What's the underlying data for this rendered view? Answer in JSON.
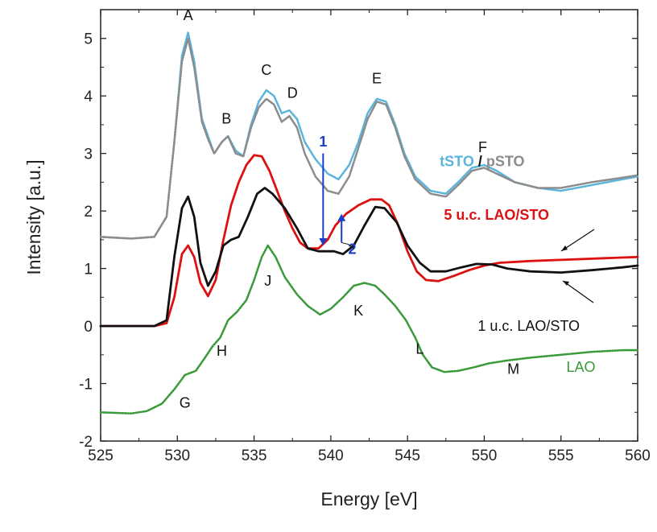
{
  "chart_data": {
    "type": "line",
    "xlabel": "Energy [eV]",
    "ylabel": "Intensity [a.u.]",
    "xlim": [
      525,
      560
    ],
    "ylim": [
      -2,
      5.5
    ],
    "xticks": [
      525,
      530,
      535,
      540,
      545,
      550,
      555,
      560
    ],
    "yticks": [
      -2,
      -1,
      0,
      1,
      2,
      3,
      4,
      5
    ],
    "grid": false,
    "series": [
      {
        "name": "tSTO",
        "color": "#5ab4dc",
        "style": "dotted",
        "points": [
          [
            525,
            1.55
          ],
          [
            527,
            1.52
          ],
          [
            528.5,
            1.55
          ],
          [
            529.3,
            1.9
          ],
          [
            529.8,
            3.2
          ],
          [
            530.3,
            4.7
          ],
          [
            530.7,
            5.1
          ],
          [
            531.1,
            4.6
          ],
          [
            531.6,
            3.6
          ],
          [
            532.0,
            3.3
          ],
          [
            532.4,
            3.0
          ],
          [
            532.9,
            3.2
          ],
          [
            533.3,
            3.3
          ],
          [
            533.8,
            3.05
          ],
          [
            534.3,
            2.95
          ],
          [
            534.8,
            3.5
          ],
          [
            535.3,
            3.9
          ],
          [
            535.8,
            4.1
          ],
          [
            536.3,
            4.0
          ],
          [
            536.8,
            3.7
          ],
          [
            537.3,
            3.75
          ],
          [
            537.8,
            3.6
          ],
          [
            538.3,
            3.2
          ],
          [
            539,
            2.9
          ],
          [
            539.8,
            2.65
          ],
          [
            540.5,
            2.55
          ],
          [
            541.2,
            2.8
          ],
          [
            541.8,
            3.2
          ],
          [
            542.4,
            3.7
          ],
          [
            543.0,
            3.95
          ],
          [
            543.6,
            3.9
          ],
          [
            544.2,
            3.5
          ],
          [
            544.8,
            3.0
          ],
          [
            545.5,
            2.6
          ],
          [
            546.5,
            2.35
          ],
          [
            547.5,
            2.3
          ],
          [
            548.3,
            2.5
          ],
          [
            549.2,
            2.75
          ],
          [
            550.0,
            2.8
          ],
          [
            550.8,
            2.7
          ],
          [
            552,
            2.5
          ],
          [
            553.5,
            2.4
          ],
          [
            555,
            2.35
          ],
          [
            557,
            2.45
          ],
          [
            559,
            2.55
          ],
          [
            560,
            2.6
          ]
        ]
      },
      {
        "name": "pSTO",
        "color": "#8c8c8c",
        "style": "dotted",
        "points": [
          [
            525,
            1.55
          ],
          [
            527,
            1.52
          ],
          [
            528.5,
            1.55
          ],
          [
            529.3,
            1.9
          ],
          [
            529.8,
            3.2
          ],
          [
            530.3,
            4.6
          ],
          [
            530.7,
            5.0
          ],
          [
            531.1,
            4.5
          ],
          [
            531.6,
            3.55
          ],
          [
            532.0,
            3.25
          ],
          [
            532.4,
            3.0
          ],
          [
            532.9,
            3.2
          ],
          [
            533.3,
            3.3
          ],
          [
            533.8,
            3.0
          ],
          [
            534.3,
            2.95
          ],
          [
            534.8,
            3.45
          ],
          [
            535.3,
            3.8
          ],
          [
            535.8,
            3.95
          ],
          [
            536.3,
            3.85
          ],
          [
            536.8,
            3.55
          ],
          [
            537.3,
            3.65
          ],
          [
            537.8,
            3.45
          ],
          [
            538.3,
            3.0
          ],
          [
            539,
            2.6
          ],
          [
            539.8,
            2.35
          ],
          [
            540.5,
            2.3
          ],
          [
            541.2,
            2.6
          ],
          [
            541.8,
            3.1
          ],
          [
            542.4,
            3.6
          ],
          [
            543.0,
            3.9
          ],
          [
            543.6,
            3.85
          ],
          [
            544.2,
            3.45
          ],
          [
            544.8,
            2.95
          ],
          [
            545.5,
            2.55
          ],
          [
            546.5,
            2.3
          ],
          [
            547.5,
            2.25
          ],
          [
            548.3,
            2.45
          ],
          [
            549.2,
            2.7
          ],
          [
            550.0,
            2.75
          ],
          [
            550.8,
            2.65
          ],
          [
            552,
            2.5
          ],
          [
            553.5,
            2.4
          ],
          [
            555,
            2.4
          ],
          [
            557,
            2.5
          ],
          [
            559,
            2.58
          ],
          [
            560,
            2.62
          ]
        ]
      },
      {
        "name": "5 u.c. LAO/STO",
        "color": "#dd1111",
        "style": "solid",
        "points": [
          [
            525,
            0
          ],
          [
            528.5,
            0
          ],
          [
            529.3,
            0.05
          ],
          [
            529.8,
            0.5
          ],
          [
            530.3,
            1.25
          ],
          [
            530.7,
            1.4
          ],
          [
            531.1,
            1.2
          ],
          [
            531.5,
            0.75
          ],
          [
            532.0,
            0.52
          ],
          [
            532.5,
            0.8
          ],
          [
            533.0,
            1.5
          ],
          [
            533.5,
            2.1
          ],
          [
            534.0,
            2.5
          ],
          [
            534.5,
            2.8
          ],
          [
            535.0,
            2.97
          ],
          [
            535.5,
            2.95
          ],
          [
            536.0,
            2.7
          ],
          [
            536.5,
            2.35
          ],
          [
            537.0,
            2.0
          ],
          [
            537.5,
            1.7
          ],
          [
            538.0,
            1.45
          ],
          [
            538.5,
            1.35
          ],
          [
            539.2,
            1.35
          ],
          [
            539.8,
            1.5
          ],
          [
            540.3,
            1.75
          ],
          [
            541.0,
            1.95
          ],
          [
            541.8,
            2.1
          ],
          [
            542.6,
            2.2
          ],
          [
            543.3,
            2.2
          ],
          [
            543.8,
            2.1
          ],
          [
            544.4,
            1.75
          ],
          [
            545.0,
            1.3
          ],
          [
            545.6,
            0.95
          ],
          [
            546.2,
            0.8
          ],
          [
            547.0,
            0.78
          ],
          [
            548.0,
            0.87
          ],
          [
            549.0,
            0.97
          ],
          [
            550.0,
            1.05
          ],
          [
            551.0,
            1.1
          ],
          [
            553,
            1.13
          ],
          [
            555,
            1.15
          ],
          [
            558,
            1.18
          ],
          [
            560,
            1.2
          ]
        ]
      },
      {
        "name": "1 u.c. LAO/STO",
        "color": "#111111",
        "style": "solid",
        "points": [
          [
            525,
            0
          ],
          [
            528.5,
            0
          ],
          [
            529.3,
            0.1
          ],
          [
            529.8,
            1.2
          ],
          [
            530.3,
            2.05
          ],
          [
            530.7,
            2.25
          ],
          [
            531.1,
            1.9
          ],
          [
            531.5,
            1.1
          ],
          [
            532.0,
            0.7
          ],
          [
            532.5,
            0.95
          ],
          [
            533.0,
            1.4
          ],
          [
            533.5,
            1.5
          ],
          [
            534.0,
            1.55
          ],
          [
            534.6,
            1.9
          ],
          [
            535.2,
            2.3
          ],
          [
            535.7,
            2.4
          ],
          [
            536.2,
            2.3
          ],
          [
            537.0,
            2.05
          ],
          [
            537.8,
            1.7
          ],
          [
            538.5,
            1.35
          ],
          [
            539.2,
            1.3
          ],
          [
            540.2,
            1.3
          ],
          [
            540.8,
            1.25
          ],
          [
            541.5,
            1.4
          ],
          [
            542.2,
            1.75
          ],
          [
            542.9,
            2.07
          ],
          [
            543.5,
            2.05
          ],
          [
            544.3,
            1.8
          ],
          [
            545.0,
            1.4
          ],
          [
            545.8,
            1.1
          ],
          [
            546.5,
            0.95
          ],
          [
            547.5,
            0.95
          ],
          [
            548.5,
            1.02
          ],
          [
            549.5,
            1.08
          ],
          [
            550.5,
            1.07
          ],
          [
            551.5,
            1.0
          ],
          [
            553,
            0.95
          ],
          [
            555,
            0.93
          ],
          [
            557,
            0.97
          ],
          [
            559,
            1.02
          ],
          [
            560,
            1.05
          ]
        ]
      },
      {
        "name": "LAO",
        "color": "#3a9a3a",
        "style": "dotted",
        "points": [
          [
            525,
            -1.5
          ],
          [
            527,
            -1.52
          ],
          [
            528,
            -1.48
          ],
          [
            529,
            -1.35
          ],
          [
            529.8,
            -1.1
          ],
          [
            530.5,
            -0.85
          ],
          [
            531.2,
            -0.78
          ],
          [
            531.8,
            -0.55
          ],
          [
            532.3,
            -0.35
          ],
          [
            532.8,
            -0.2
          ],
          [
            533.3,
            0.1
          ],
          [
            533.9,
            0.25
          ],
          [
            534.5,
            0.45
          ],
          [
            535.0,
            0.8
          ],
          [
            535.5,
            1.2
          ],
          [
            535.9,
            1.4
          ],
          [
            536.4,
            1.2
          ],
          [
            537.0,
            0.85
          ],
          [
            537.8,
            0.55
          ],
          [
            538.5,
            0.35
          ],
          [
            539.3,
            0.2
          ],
          [
            540.0,
            0.3
          ],
          [
            540.8,
            0.5
          ],
          [
            541.5,
            0.7
          ],
          [
            542.2,
            0.75
          ],
          [
            542.9,
            0.7
          ],
          [
            543.5,
            0.55
          ],
          [
            544.2,
            0.35
          ],
          [
            544.9,
            0.1
          ],
          [
            545.5,
            -0.2
          ],
          [
            546.0,
            -0.5
          ],
          [
            546.6,
            -0.72
          ],
          [
            547.4,
            -0.8
          ],
          [
            548.3,
            -0.78
          ],
          [
            549.3,
            -0.72
          ],
          [
            550.3,
            -0.65
          ],
          [
            551.5,
            -0.6
          ],
          [
            553,
            -0.55
          ],
          [
            555,
            -0.5
          ],
          [
            557,
            -0.45
          ],
          [
            559,
            -0.42
          ],
          [
            560,
            -0.42
          ]
        ]
      }
    ],
    "peak_labels": [
      {
        "text": "A",
        "x": 530.7,
        "y": 5.32
      },
      {
        "text": "B",
        "x": 533.2,
        "y": 3.52
      },
      {
        "text": "C",
        "x": 535.8,
        "y": 4.37
      },
      {
        "text": "D",
        "x": 537.5,
        "y": 3.97
      },
      {
        "text": "E",
        "x": 543.0,
        "y": 4.22
      },
      {
        "text": "F",
        "x": 549.9,
        "y": 3.02
      },
      {
        "text": "G",
        "x": 530.5,
        "y": -1.42
      },
      {
        "text": "H",
        "x": 532.9,
        "y": -0.52
      },
      {
        "text": "J",
        "x": 535.9,
        "y": 0.7
      },
      {
        "text": "K",
        "x": 541.8,
        "y": 0.18
      },
      {
        "text": "L",
        "x": 545.8,
        "y": -0.48
      },
      {
        "text": "M",
        "x": 551.9,
        "y": -0.83
      }
    ],
    "series_labels": {
      "tsto": {
        "text": "tSTO",
        "color": "#5ab4dc",
        "x": 547.1,
        "y": 2.78
      },
      "slash": {
        "text": " / ",
        "color": "#111111"
      },
      "psto": {
        "text": "pSTO",
        "color": "#8c8c8c"
      },
      "lao_sto_5": {
        "text": "5 u.c. LAO/STO",
        "color": "#dd1111",
        "x": 550.8,
        "y": 1.85
      },
      "lao_sto_1": {
        "text": "1 u.c. LAO/STO",
        "color": "#111111",
        "x": 552.9,
        "y": -0.08
      },
      "lao": {
        "text": "LAO",
        "color": "#3a9a3a",
        "x": 556.3,
        "y": -0.8
      }
    },
    "arrows": [
      {
        "label": "1",
        "color": "#1a3ec8",
        "x": 539.5,
        "y_from": 3.0,
        "y_to": 1.4,
        "label_x": 539.5,
        "label_y": 3.12
      },
      {
        "label": "2",
        "color": "#1a3ec8",
        "x": 540.7,
        "y_from": 1.45,
        "y_to": 1.95,
        "label_x": 541.4,
        "label_y": 1.25
      }
    ]
  }
}
